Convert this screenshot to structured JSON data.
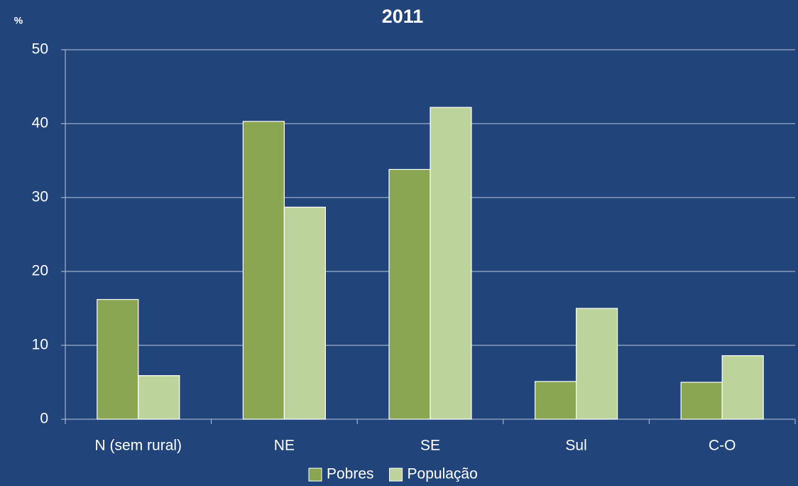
{
  "chart_data": {
    "type": "bar",
    "title": "2011",
    "ylabel": "%",
    "categories": [
      "N (sem rural)",
      "NE",
      "SE",
      "Sul",
      "C-O"
    ],
    "series": [
      {
        "name": "Pobres",
        "color": "#8ba652",
        "values": [
          16.2,
          40.3,
          33.8,
          5.1,
          5.0
        ]
      },
      {
        "name": "População",
        "color": "#bcd39b",
        "values": [
          5.9,
          28.7,
          42.2,
          15.0,
          8.6
        ]
      }
    ],
    "ylim": [
      0,
      50
    ],
    "yticks": [
      0,
      10,
      20,
      30,
      40,
      50
    ],
    "grid": true,
    "legend": "bottom"
  }
}
